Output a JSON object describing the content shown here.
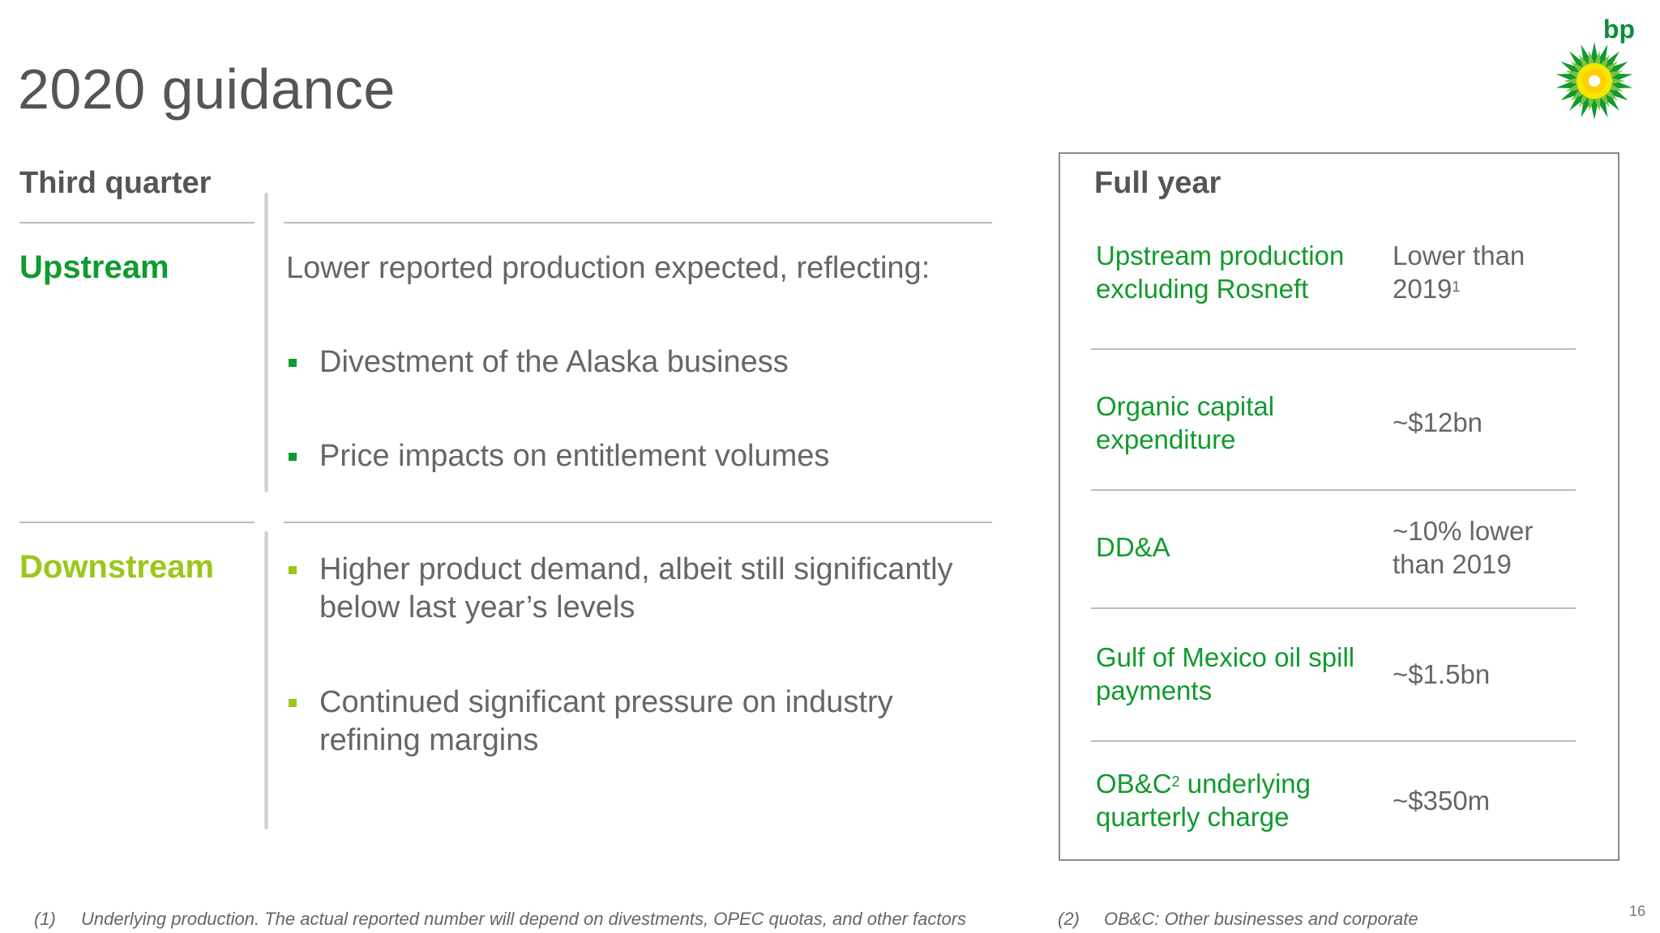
{
  "slide": {
    "title": "2020 guidance",
    "page_number": "16",
    "brand": {
      "name": "bp",
      "green": "#119a2e",
      "yellow": "#ffd700"
    }
  },
  "third_quarter": {
    "heading": "Third quarter",
    "upstream": {
      "label": "Upstream",
      "intro": "Lower reported production expected, reflecting:",
      "bullets": [
        "Divestment of the Alaska business",
        "Price impacts on entitlement volumes"
      ]
    },
    "downstream": {
      "label": "Downstream",
      "bullets": [
        "Higher product demand, albeit still significantly below last year’s levels",
        "Continued significant pressure on industry refining margins"
      ]
    }
  },
  "full_year": {
    "heading": "Full year",
    "rows": [
      {
        "label": "Upstream production excluding Rosneft",
        "value": "Lower than 2019",
        "value_note": "1"
      },
      {
        "label": "Organic capital expenditure",
        "value": "~$12bn"
      },
      {
        "label": "DD&A",
        "value": "~10% lower than 2019"
      },
      {
        "label": "Gulf of Mexico oil spill payments",
        "value": "~$1.5bn"
      },
      {
        "label_part1": "OB&C",
        "label_note": "2",
        "label_part2": " underlying quarterly charge",
        "value": "~$350m"
      }
    ]
  },
  "footnotes": [
    {
      "marker": "(1)",
      "text": "Underlying production. The actual reported number will depend on divestments, OPEC quotas, and other factors"
    },
    {
      "marker": "(2)",
      "text": "OB&C: Other businesses and corporate"
    }
  ]
}
